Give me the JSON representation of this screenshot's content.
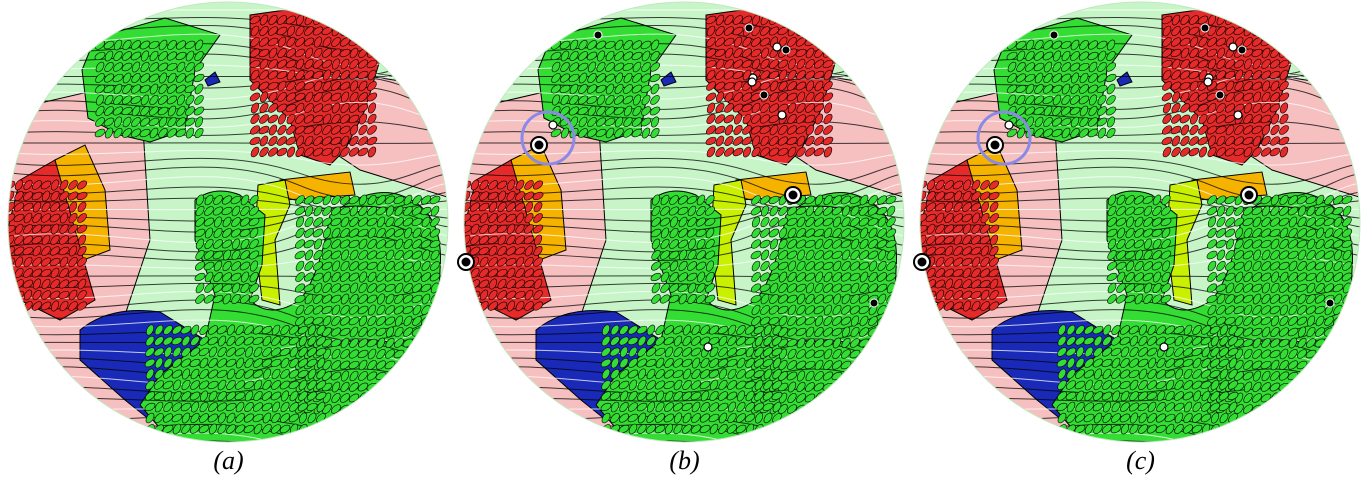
{
  "figure": {
    "panels": [
      {
        "id": "a",
        "caption": "(a)",
        "show_singularities": false,
        "show_highlight": false
      },
      {
        "id": "b",
        "caption": "(b)",
        "show_singularities": true,
        "show_highlight": true
      },
      {
        "id": "c",
        "caption": "(c)",
        "show_singularities": true,
        "show_highlight": true
      }
    ],
    "colors": {
      "light_green": "#c8f5c8",
      "green": "#33dd33",
      "pink": "#f6c0c0",
      "red": "#e62a2a",
      "orange": "#f5b300",
      "yellow_green": "#c8f000",
      "blue": "#1a2ab8",
      "highlight_ring": "#8a8ae6",
      "stroke_black": "#000000",
      "stroke_white": "#ffffff"
    }
  }
}
